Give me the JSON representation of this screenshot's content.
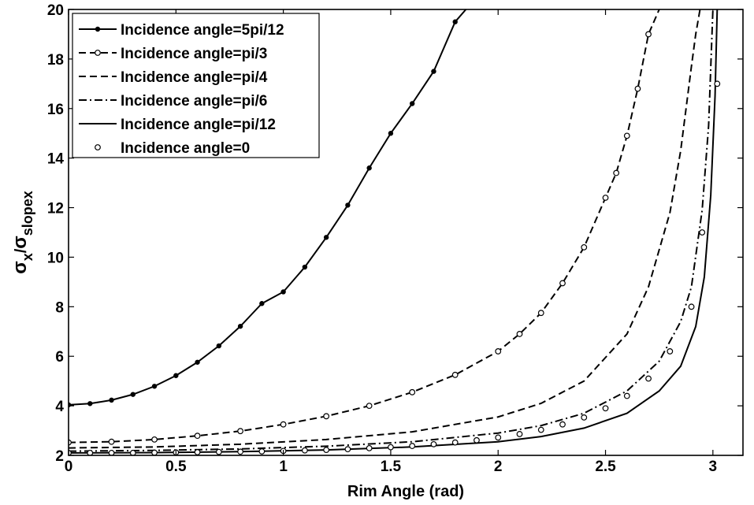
{
  "chart_data": {
    "type": "line",
    "xlabel": "Rim Angle (rad)",
    "ylabel": {
      "sigma": "σ",
      "sub_x": "x",
      "slash": "/",
      "sub_slopex": "slopex"
    },
    "xlim": [
      0,
      3.14
    ],
    "ylim": [
      2,
      20
    ],
    "xticks": [
      0,
      0.5,
      1,
      1.5,
      2,
      2.5,
      3
    ],
    "xtick_labels": [
      "0",
      "0.5",
      "1",
      "1.5",
      "2",
      "2.5",
      "3"
    ],
    "yticks": [
      2,
      4,
      6,
      8,
      10,
      12,
      14,
      16,
      18,
      20
    ],
    "ytick_labels": [
      "2",
      "4",
      "6",
      "8",
      "10",
      "12",
      "14",
      "16",
      "18",
      "20"
    ],
    "grid": false,
    "legend_position": "top-left",
    "series": [
      {
        "name": "Incidence angle=5pi/12",
        "style": "solid-dot",
        "x": [
          0,
          0.1,
          0.2,
          0.3,
          0.4,
          0.5,
          0.6,
          0.7,
          0.8,
          0.9,
          1.0,
          1.1,
          1.2,
          1.3,
          1.4,
          1.5,
          1.6,
          1.7,
          1.8,
          1.85
        ],
        "y": [
          4.04,
          4.09,
          4.23,
          4.46,
          4.79,
          5.22,
          5.76,
          6.42,
          7.21,
          8.13,
          8.6,
          9.6,
          10.8,
          12.1,
          13.6,
          15.0,
          16.2,
          17.5,
          19.5,
          20.0
        ]
      },
      {
        "name": "Incidence angle=pi/3",
        "style": "dashed-circle",
        "x": [
          0,
          0.2,
          0.4,
          0.6,
          0.8,
          1.0,
          1.2,
          1.4,
          1.6,
          1.8,
          2.0,
          2.1,
          2.2,
          2.3,
          2.4,
          2.5,
          2.55,
          2.6,
          2.65,
          2.7,
          2.75
        ],
        "y": [
          2.52,
          2.55,
          2.64,
          2.79,
          2.98,
          3.25,
          3.58,
          4.0,
          4.55,
          5.25,
          6.2,
          6.9,
          7.75,
          8.95,
          10.4,
          12.4,
          13.4,
          14.9,
          16.8,
          19.0,
          20.0
        ]
      },
      {
        "name": "Incidence angle=pi/4",
        "style": "dashed",
        "x": [
          0,
          0.4,
          0.8,
          1.2,
          1.6,
          2.0,
          2.2,
          2.4,
          2.6,
          2.7,
          2.8,
          2.85,
          2.9,
          2.92,
          2.94
        ],
        "y": [
          2.3,
          2.34,
          2.45,
          2.64,
          2.95,
          3.55,
          4.1,
          5.0,
          6.9,
          8.8,
          11.8,
          14.3,
          17.7,
          19.0,
          20.0
        ]
      },
      {
        "name": "Incidence angle=pi/6",
        "style": "dash-dot",
        "x": [
          0,
          0.4,
          0.8,
          1.2,
          1.6,
          2.0,
          2.2,
          2.4,
          2.6,
          2.75,
          2.85,
          2.9,
          2.95,
          2.98,
          3.0
        ],
        "y": [
          2.17,
          2.2,
          2.26,
          2.37,
          2.55,
          2.9,
          3.2,
          3.7,
          4.6,
          5.8,
          7.4,
          8.8,
          11.9,
          15.3,
          20.0
        ]
      },
      {
        "name": "Incidence angle=pi/12",
        "style": "solid",
        "x": [
          0,
          0.4,
          0.8,
          1.2,
          1.6,
          2.0,
          2.2,
          2.4,
          2.6,
          2.75,
          2.85,
          2.92,
          2.96,
          2.99,
          3.01,
          3.02
        ],
        "y": [
          2.1,
          2.11,
          2.15,
          2.22,
          2.34,
          2.55,
          2.76,
          3.1,
          3.7,
          4.6,
          5.6,
          7.2,
          9.2,
          12.5,
          16.5,
          20.0
        ]
      },
      {
        "name": "Incidence angle=0",
        "style": "circle",
        "x": [
          0,
          0.1,
          0.2,
          0.3,
          0.4,
          0.5,
          0.6,
          0.7,
          0.8,
          0.9,
          1.0,
          1.1,
          1.2,
          1.3,
          1.4,
          1.5,
          1.6,
          1.7,
          1.8,
          1.9,
          2.0,
          2.1,
          2.2,
          2.3,
          2.4,
          2.5,
          2.6,
          2.7,
          2.8,
          2.9,
          2.95,
          3.02
        ],
        "y": [
          2.1,
          2.1,
          2.1,
          2.1,
          2.11,
          2.12,
          2.13,
          2.14,
          2.15,
          2.16,
          2.18,
          2.2,
          2.22,
          2.25,
          2.29,
          2.33,
          2.38,
          2.45,
          2.52,
          2.61,
          2.72,
          2.86,
          3.03,
          3.25,
          3.53,
          3.9,
          4.4,
          5.1,
          6.2,
          8.0,
          11.0,
          17.0
        ]
      }
    ]
  }
}
